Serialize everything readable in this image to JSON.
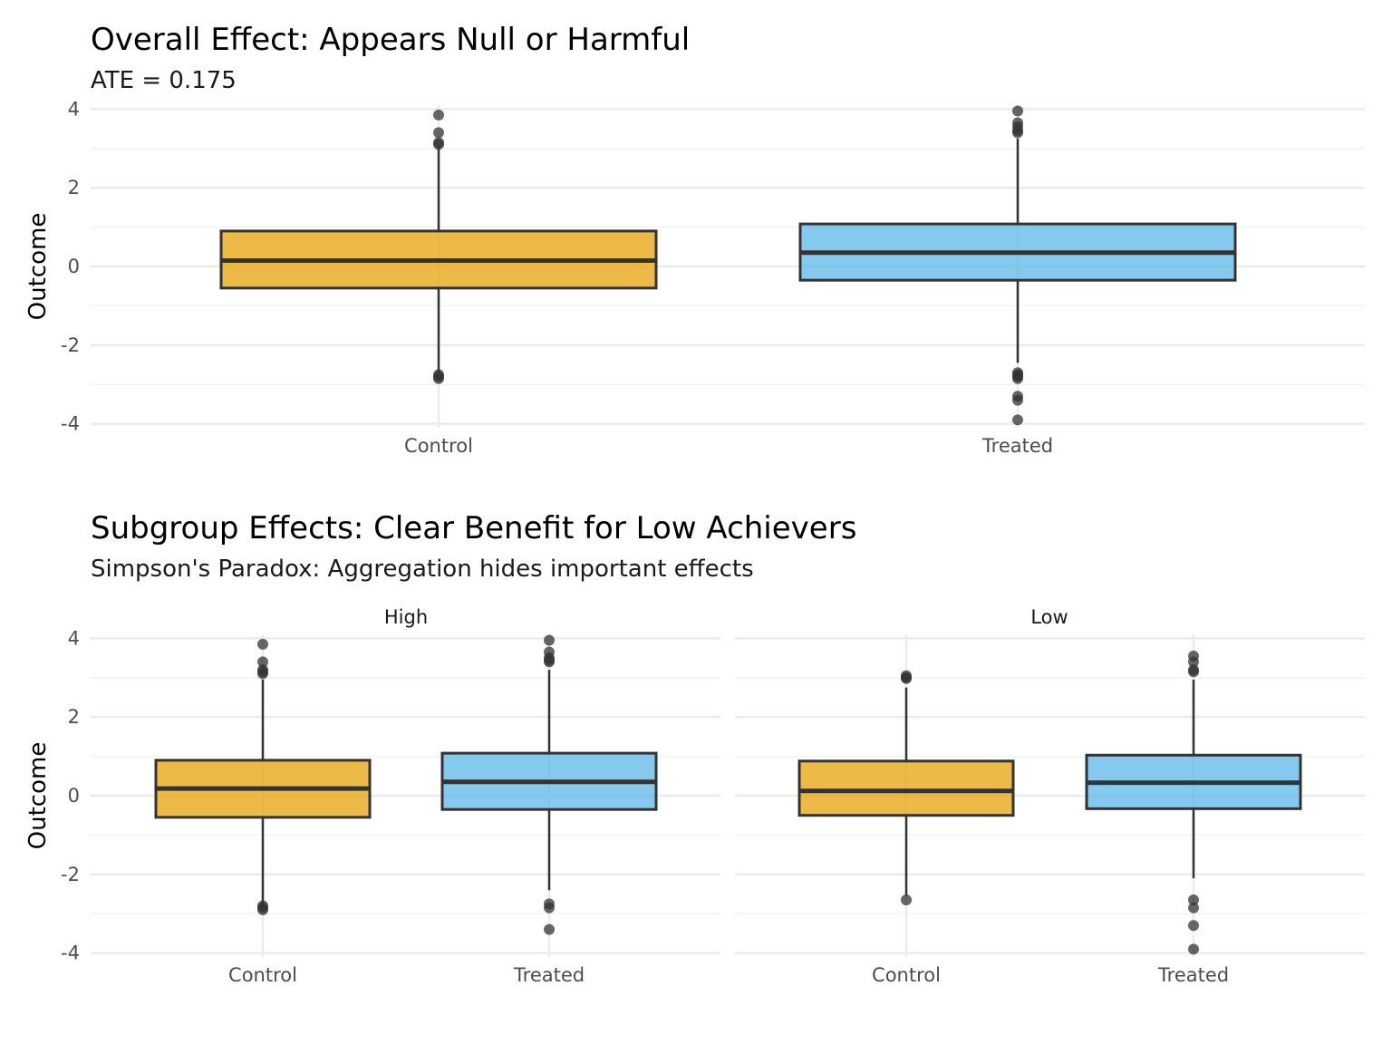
{
  "colors": {
    "control_fill": "#E69F00",
    "treated_fill": "#56B4E9",
    "box_stroke": "#333333",
    "grid_major": "#EBEBEB",
    "grid_minor": "#F3F3F3",
    "outlier": "#333333"
  },
  "chart_data": [
    {
      "type": "boxplot",
      "title": "Overall Effect: Appears Null or Harmful",
      "subtitle": "ATE = 0.175",
      "ylabel": "Outcome",
      "xlabel": "",
      "ylim": [
        -4.1,
        4.1
      ],
      "yticks": [
        -4,
        -2,
        0,
        2,
        4
      ],
      "grid": true,
      "legend": "none",
      "panels": [
        {
          "strip": "",
          "categories": [
            "Control",
            "Treated"
          ],
          "boxes": [
            {
              "group": "Control",
              "lower_whisker": -2.7,
              "q1": -0.55,
              "median": 0.15,
              "q3": 0.9,
              "upper_whisker": 3.05,
              "outliers": [
                3.85,
                3.4,
                3.15,
                3.1,
                -2.75,
                -2.8,
                -2.85
              ]
            },
            {
              "group": "Treated",
              "lower_whisker": -2.45,
              "q1": -0.35,
              "median": 0.35,
              "q3": 1.08,
              "upper_whisker": 3.25,
              "outliers": [
                3.95,
                3.65,
                3.55,
                3.45,
                3.4,
                -2.7,
                -2.75,
                -2.8,
                -2.85,
                -3.3,
                -3.4,
                -3.9
              ]
            }
          ]
        }
      ]
    },
    {
      "type": "boxplot",
      "title": "Subgroup Effects: Clear Benefit for Low Achievers",
      "subtitle": "Simpson's Paradox: Aggregation hides important effects",
      "ylabel": "Outcome",
      "xlabel": "",
      "ylim": [
        -4.1,
        4.1
      ],
      "yticks": [
        -4,
        -2,
        0,
        2,
        4
      ],
      "grid": true,
      "legend": "none",
      "panels": [
        {
          "strip": "High",
          "categories": [
            "Control",
            "Treated"
          ],
          "boxes": [
            {
              "group": "Control",
              "lower_whisker": -2.8,
              "q1": -0.55,
              "median": 0.18,
              "q3": 0.9,
              "upper_whisker": 2.95,
              "outliers": [
                3.85,
                3.4,
                3.2,
                3.15,
                3.1,
                -2.8,
                -2.85,
                -2.9
              ]
            },
            {
              "group": "Treated",
              "lower_whisker": -2.4,
              "q1": -0.35,
              "median": 0.35,
              "q3": 1.08,
              "upper_whisker": 3.2,
              "outliers": [
                3.95,
                3.65,
                3.5,
                3.45,
                3.4,
                -2.75,
                -2.85,
                -3.4
              ]
            }
          ]
        },
        {
          "strip": "Low",
          "categories": [
            "Control",
            "Treated"
          ],
          "boxes": [
            {
              "group": "Control",
              "lower_whisker": -2.55,
              "q1": -0.5,
              "median": 0.12,
              "q3": 0.88,
              "upper_whisker": 2.75,
              "outliers": [
                3.05,
                3.0,
                2.98,
                -2.65
              ]
            },
            {
              "group": "Treated",
              "lower_whisker": -2.1,
              "q1": -0.33,
              "median": 0.33,
              "q3": 1.03,
              "upper_whisker": 2.95,
              "outliers": [
                3.55,
                3.4,
                3.2,
                3.15,
                -2.65,
                -2.85,
                -3.3,
                -3.9
              ]
            }
          ]
        }
      ]
    }
  ]
}
